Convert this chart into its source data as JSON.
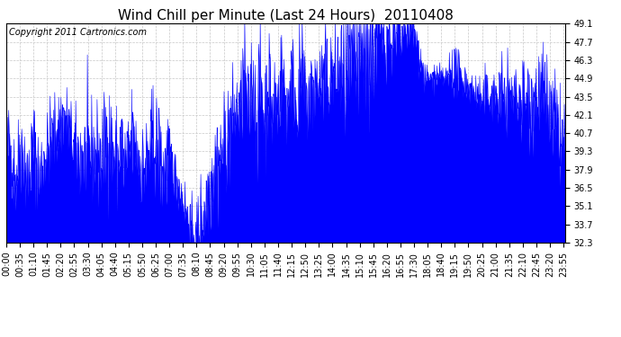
{
  "title": "Wind Chill per Minute (Last 24 Hours)  20110408",
  "copyright": "Copyright 2011 Cartronics.com",
  "line_color": "#0000FF",
  "bg_color": "#ffffff",
  "grid_color": "#c8c8c8",
  "yticks": [
    32.3,
    33.7,
    35.1,
    36.5,
    37.9,
    39.3,
    40.7,
    42.1,
    43.5,
    44.9,
    46.3,
    47.7,
    49.1
  ],
  "ymin": 32.3,
  "ymax": 49.1,
  "title_fontsize": 11,
  "copyright_fontsize": 7,
  "tick_fontsize": 7
}
